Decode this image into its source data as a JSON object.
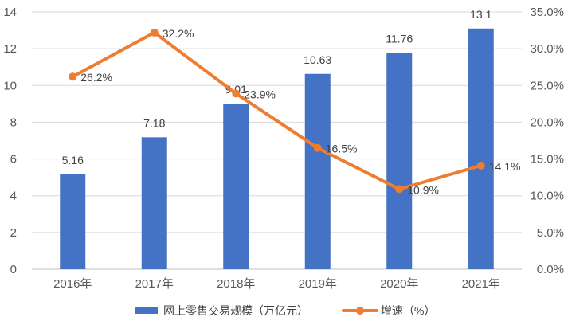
{
  "chart_data": {
    "type": "bar",
    "categories": [
      "2016年",
      "2017年",
      "2018年",
      "2019年",
      "2020年",
      "2021年"
    ],
    "series": [
      {
        "name": "网上零售交易规模（万亿元）",
        "type": "bar",
        "axis": "left",
        "values": [
          5.16,
          7.18,
          9.01,
          10.63,
          11.76,
          13.1
        ],
        "labels": [
          "5.16",
          "7.18",
          "9.01",
          "10.63",
          "11.76",
          "13.1"
        ],
        "color": "#4472C4"
      },
      {
        "name": "增速（%）",
        "type": "line",
        "axis": "right",
        "values": [
          26.2,
          32.2,
          23.9,
          16.5,
          10.9,
          14.1
        ],
        "labels": [
          "26.2%",
          "32.2%",
          "23.9%",
          "16.5%",
          "10.9%",
          "14.1%"
        ],
        "color": "#ED7D31"
      }
    ],
    "y_left": {
      "min": 0,
      "max": 14,
      "ticks": [
        "0",
        "2",
        "4",
        "6",
        "8",
        "10",
        "12",
        "14"
      ]
    },
    "y_right": {
      "min": 0,
      "max": 35,
      "ticks": [
        "0.0%",
        "5.0%",
        "10.0%",
        "15.0%",
        "20.0%",
        "25.0%",
        "30.0%",
        "35.0%"
      ]
    },
    "grid": true,
    "legend_position": "bottom",
    "gridline_color": "#D9D9D9",
    "axis_text_color": "#595959"
  }
}
